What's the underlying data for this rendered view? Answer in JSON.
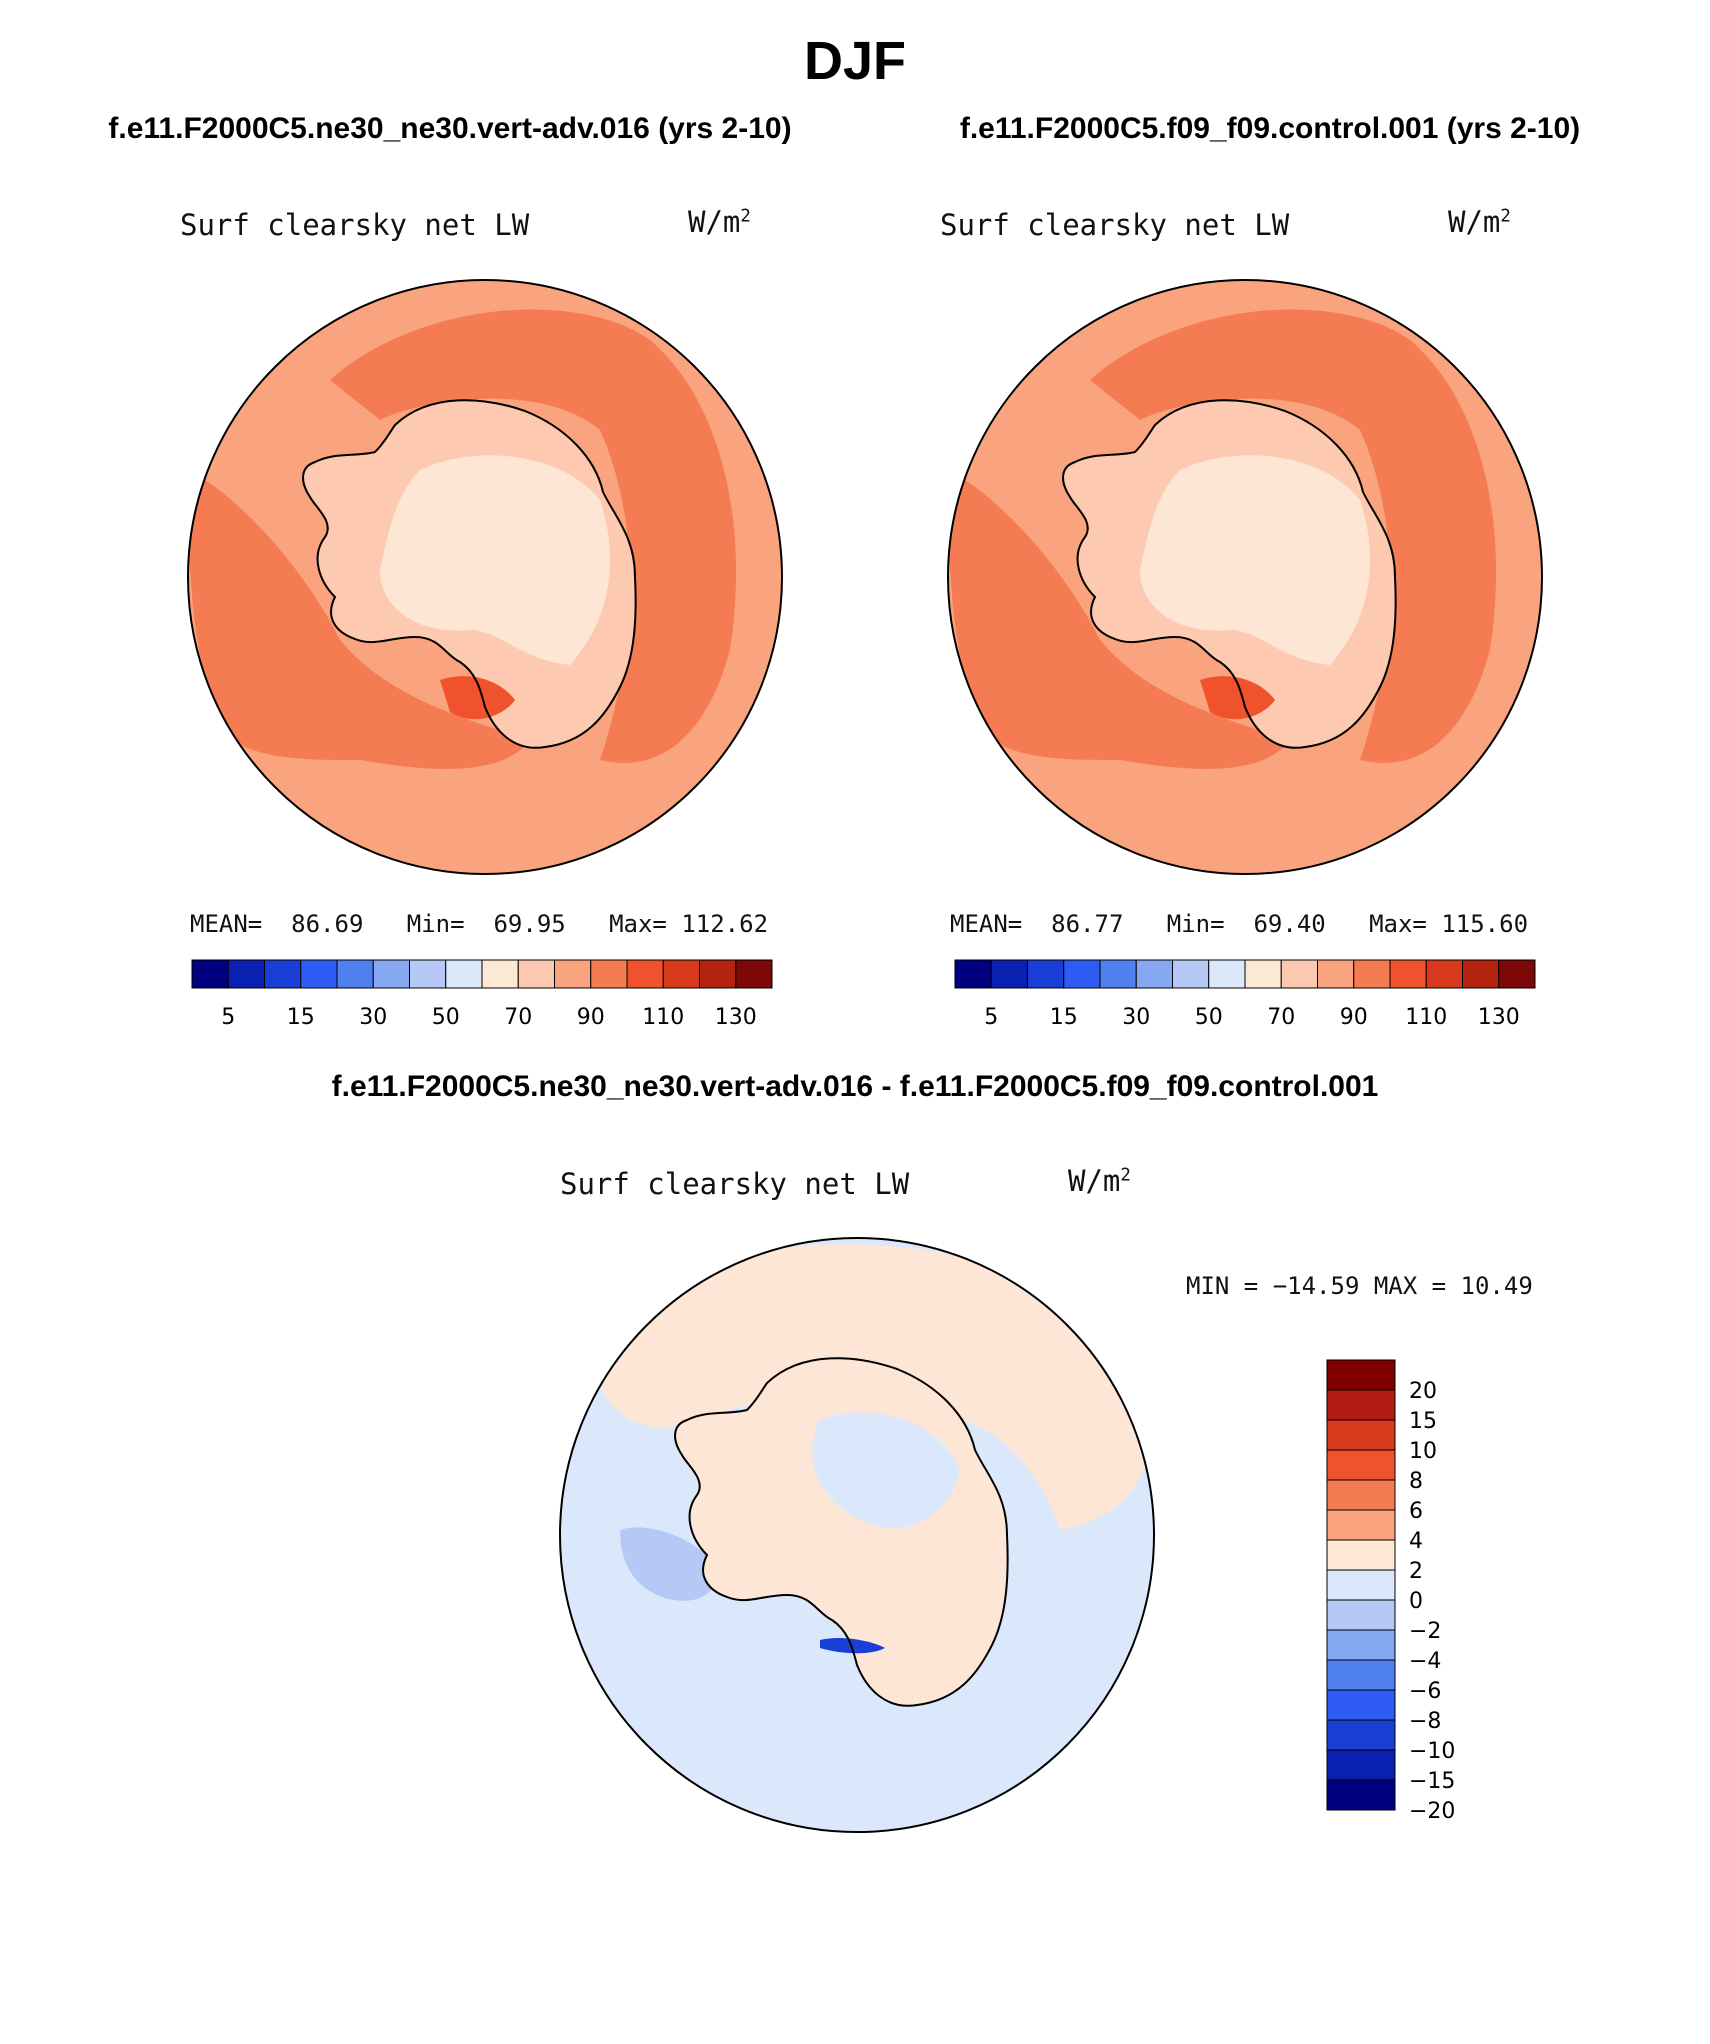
{
  "title": "DJF",
  "panels": [
    {
      "case": "f.e11.F2000C5.ne30_ne30.vert-adv.016 (yrs 2-10)",
      "variable": "Surf clearsky net LW",
      "units_base": "W/m",
      "units_exp": "2",
      "stats": {
        "mean_label": "MEAN=",
        "mean": "86.69",
        "min_label": "Min=",
        "min": "69.95",
        "max_label": "Max=",
        "max": "112.62"
      }
    },
    {
      "case": "f.e11.F2000C5.f09_f09.control.001 (yrs 2-10)",
      "variable": "Surf clearsky net LW",
      "units_base": "W/m",
      "units_exp": "2",
      "stats": {
        "mean_label": "MEAN=",
        "mean": "86.77",
        "min_label": "Min=",
        "min": "69.40",
        "max_label": "Max=",
        "max": "115.60"
      }
    }
  ],
  "difference": {
    "case": "f.e11.F2000C5.ne30_ne30.vert-adv.016 - f.e11.F2000C5.f09_f09.control.001",
    "variable": "Surf clearsky net LW",
    "units_base": "W/m",
    "units_exp": "2",
    "minmax": "MIN = −14.59 MAX =   10.49"
  },
  "colorbar": {
    "colors": [
      "#000080",
      "#0a20b0",
      "#1a3fd6",
      "#2e5cf2",
      "#5080ee",
      "#86a8f2",
      "#b6c9f6",
      "#dbe8fc",
      "#fde8d6",
      "#fcc9b0",
      "#f9a47e",
      "#f57c52",
      "#f0522d",
      "#d8391c",
      "#b22410",
      "#7c0808"
    ],
    "ticks": [
      "5",
      "15",
      "30",
      "50",
      "70",
      "90",
      "110",
      "130"
    ]
  },
  "diff_colorbar": {
    "colors_top_to_bottom": [
      "#800000",
      "#b01a10",
      "#d8391c",
      "#f0522d",
      "#f57c52",
      "#f9a47e",
      "#fde8d6",
      "#dbe8fc",
      "#b6c9f6",
      "#86a8f2",
      "#5080ee",
      "#2e5cf2",
      "#1a3fd6",
      "#0a20b0",
      "#000080"
    ],
    "ticks": [
      "20",
      "15",
      "10",
      "8",
      "6",
      "4",
      "2",
      "0",
      "−2",
      "−4",
      "−6",
      "−8",
      "−10",
      "−15",
      "−20"
    ]
  },
  "map_colors": {
    "land": "#fdc9b1",
    "land_inner": "#fee6d6",
    "ocean_1": "#f9a47e",
    "ocean_2": "#f57c52",
    "hotspot": "#f0522d",
    "diff_pos": "#fee6d6",
    "diff_neg": "#dbe8fc",
    "diff_neg2": "#b6c9f6",
    "coast": "#000000"
  }
}
